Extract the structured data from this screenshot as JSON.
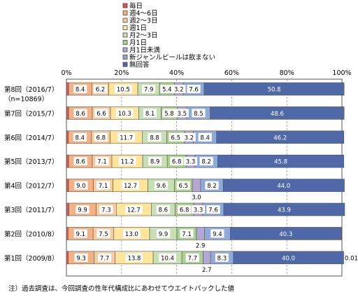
{
  "chart_data": {
    "type": "bar",
    "stacked": true,
    "orientation": "horizontal",
    "x_ticks": [
      "0%",
      "20%",
      "40%",
      "60%",
      "80%",
      "100%"
    ],
    "xlim": [
      0,
      100
    ],
    "legend_position": "top",
    "categories": [
      [
        "第8回（2016/7）",
        "（n=10869）"
      ],
      [
        "第7回（2015/7）"
      ],
      [
        "第6回（2014/7）"
      ],
      [
        "第5回（2013/7）"
      ],
      [
        "第4回（2012/7）"
      ],
      [
        "第3回（2011/7）"
      ],
      [
        "第2回（2010/8）"
      ],
      [
        "第1回（2009/8）"
      ]
    ],
    "series": [
      {
        "name": "毎日",
        "color": "#e2574c",
        "values": [
          0.8,
          0.8,
          0.7,
          0.8,
          0.8,
          0.9,
          0.6,
          0.7
        ]
      },
      {
        "name": "週4～6日",
        "color": "#f4b183",
        "values": [
          8.4,
          8.6,
          8.4,
          8.6,
          9.0,
          9.9,
          9.1,
          9.3
        ]
      },
      {
        "name": "週2～3日",
        "color": "#f9cb9c",
        "values": [
          6.2,
          6.6,
          6.8,
          7.1,
          7.1,
          7.3,
          7.5,
          7.7
        ]
      },
      {
        "name": "週1日",
        "color": "#fee599",
        "values": [
          10.5,
          10.3,
          11.7,
          11.2,
          12.7,
          12.7,
          13.0,
          13.8
        ]
      },
      {
        "name": "月2～3日",
        "color": "#c6e0b4",
        "values": [
          7.9,
          8.1,
          8.8,
          8.9,
          9.6,
          8.6,
          9.9,
          10.4
        ]
      },
      {
        "name": "月1日",
        "color": "#a9d18e",
        "values": [
          5.4,
          5.8,
          6.5,
          6.8,
          6.5,
          6.8,
          7.1,
          7.7
        ]
      },
      {
        "name": "月1日未満",
        "color": "#b4a7d6",
        "values": [
          3.2,
          3.5,
          3.2,
          3.3,
          3.0,
          3.3,
          2.9,
          2.7
        ]
      },
      {
        "name": "新ジャンルビールは飲まない",
        "color": "#8eaadb",
        "values": [
          7.6,
          8.5,
          8.4,
          8.2,
          8.2,
          7.6,
          9.4,
          8.3
        ]
      },
      {
        "name": "無回答",
        "color": "#4f69a8",
        "values": [
          50.8,
          48.6,
          46.2,
          45.8,
          44.0,
          43.9,
          40.3,
          40.0
        ]
      },
      {
        "name": "",
        "color": "#ffffff",
        "values": [
          0,
          0,
          0,
          0,
          0,
          0,
          0,
          0.01
        ]
      }
    ],
    "label_overrides": [
      {
        "row": 7,
        "series": 9,
        "text": "0.01"
      }
    ]
  },
  "footnote": "注）過去調査は、今回調査の性年代構成比にあわせてウエイトバックした値"
}
